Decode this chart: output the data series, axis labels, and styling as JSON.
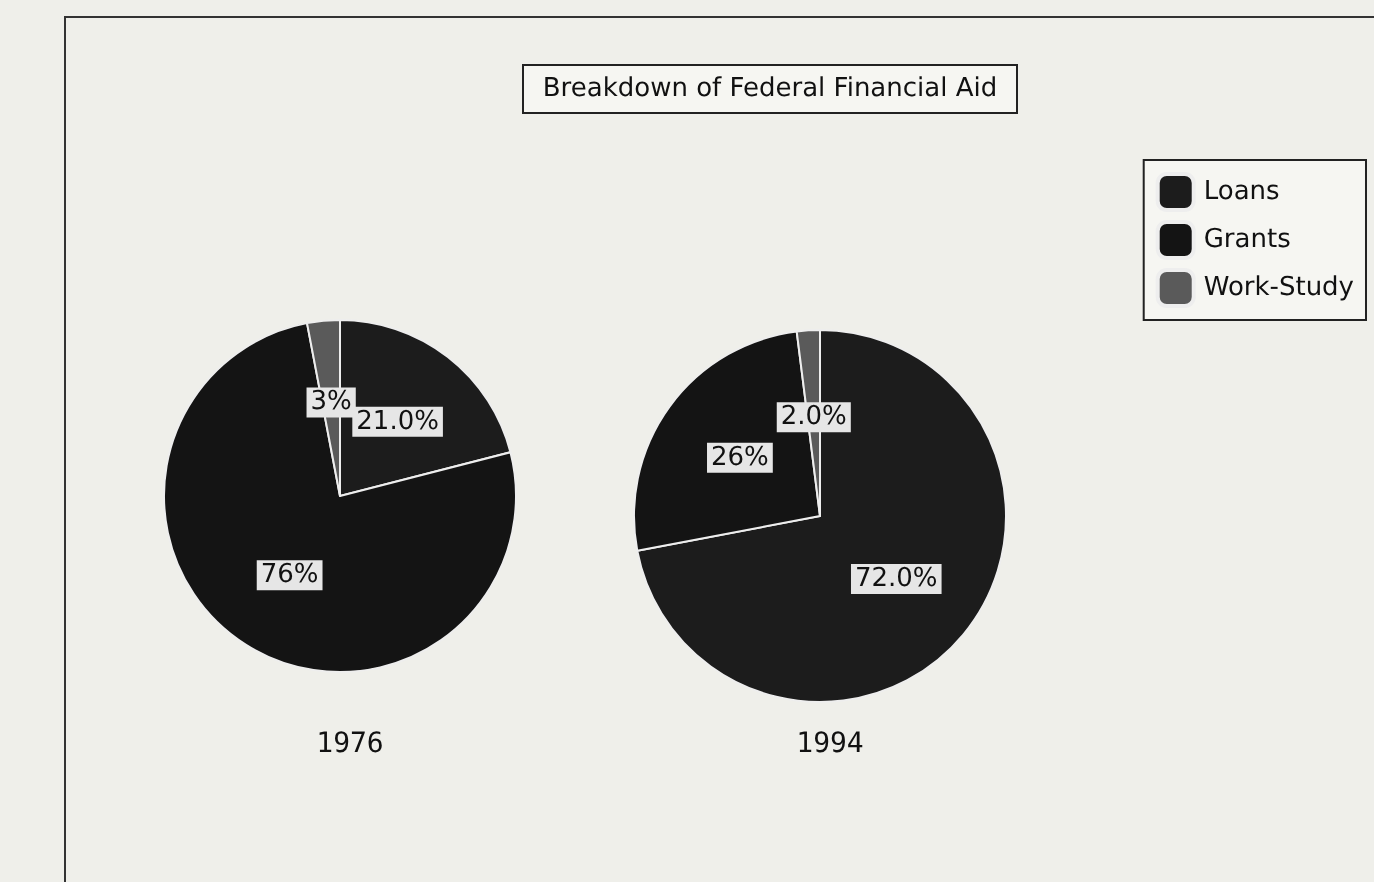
{
  "chart_data": [
    {
      "type": "pie",
      "xlabel": "1976",
      "categories": [
        "Loans",
        "Grants",
        "Work-Study"
      ],
      "values": [
        21,
        76,
        3
      ],
      "value_labels": [
        "21.0%",
        "76%",
        "3%"
      ],
      "colors": [
        "#1c1c1c",
        "#141414",
        "#5a5a5a"
      ],
      "legend": "top right"
    },
    {
      "type": "pie",
      "title": "Breakdown of Federal Financial Aid",
      "xlabel": "1994",
      "categories": [
        null,
        null,
        null
      ],
      "values": [
        72,
        26,
        2
      ],
      "value_labels": [
        "72.0%",
        "26%",
        "2.0%"
      ],
      "colors": [
        "#1c1c1c",
        "#141414",
        "#5a5a5a"
      ]
    }
  ]
}
